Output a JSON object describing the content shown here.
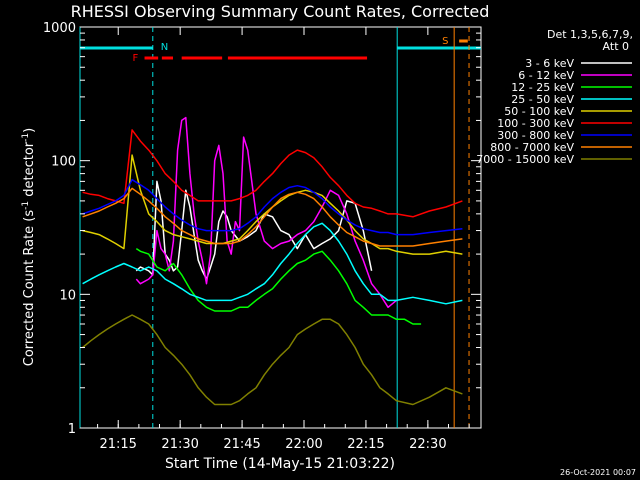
{
  "chart_data": {
    "type": "line",
    "title": "RHESSI Observing Summary Count Rates, Corrected",
    "xlabel": "Start Time (14-May-15 21:03:22)",
    "ylabel_main": "Corrected Count Rate (s",
    "ylabel_sup1": "-1",
    "ylabel_mid": " detector",
    "ylabel_sup2": "-1",
    "ylabel_end": ")",
    "yscale": "log",
    "ylim": [
      1,
      1000
    ],
    "xlim_min": [
      3.37,
      100.5
    ],
    "x_ticks_min": [
      12.63,
      27.63,
      42.63,
      57.63,
      72.63,
      87.63
    ],
    "x_tick_labels": [
      "21:15",
      "21:30",
      "21:45",
      "22:00",
      "22:15",
      "22:30"
    ],
    "y_ticks": [
      1,
      10,
      100,
      1000
    ],
    "y_tick_labels": [
      "1",
      "10",
      "100",
      "1000"
    ],
    "legend_header": [
      "Det 1,3,5,6,7,9,",
      "Att 0"
    ],
    "timestamp": "26-Oct-2021 00:07",
    "flags": {
      "N_label": "N",
      "S_label": "S",
      "F_label": "F",
      "night_color": "#00e0e0",
      "saa_color": "#ff8000",
      "flare_color": "#ff0000",
      "night_lines_min": [
        3.37,
        21.0,
        80.2
      ],
      "night_top_segments_min": [
        [
          3.37,
          21.0
        ],
        [
          80.2,
          100.5
        ]
      ],
      "saa_line_min": 94.0,
      "saa_dashed_min": 97.6,
      "saa_segment_min": [
        95.2,
        97.3
      ],
      "flare_segments_min": [
        [
          19.0,
          22.3
        ],
        [
          23.2,
          25.9
        ],
        [
          28.0,
          37.8
        ],
        [
          39.2,
          72.9
        ]
      ]
    },
    "series": [
      {
        "name": "3 - 6 keV",
        "color": "#ffffff",
        "x": [
          17,
          18,
          20,
          21,
          22,
          23,
          24,
          25,
          26,
          27,
          28,
          29,
          30,
          31,
          32,
          33,
          34,
          35,
          36,
          37,
          38,
          39,
          40,
          42,
          44,
          46,
          48,
          50,
          52,
          54,
          56,
          58,
          60,
          62,
          64,
          66,
          68,
          70,
          72,
          74
        ],
        "y": [
          15,
          16,
          15,
          14,
          70,
          50,
          20,
          18,
          15,
          16,
          30,
          60,
          45,
          28,
          18,
          15,
          13,
          16,
          20,
          35,
          42,
          38,
          30,
          25,
          27,
          30,
          40,
          38,
          30,
          28,
          22,
          28,
          22,
          24,
          26,
          30,
          50,
          48,
          30,
          15
        ]
      },
      {
        "name": "6 - 12 keV",
        "color": "#ff00ff",
        "x": [
          17,
          18,
          20,
          21,
          22,
          23,
          24,
          25,
          26,
          27,
          28,
          29,
          30,
          31,
          32,
          33,
          34,
          35,
          36,
          37,
          38,
          39,
          40,
          41,
          42,
          43,
          44,
          46,
          48,
          50,
          52,
          54,
          56,
          58,
          60,
          62,
          64,
          66,
          68,
          70,
          72,
          74,
          76,
          78,
          80
        ],
        "y": [
          13,
          12,
          13,
          14,
          30,
          22,
          20,
          15,
          25,
          120,
          200,
          210,
          80,
          40,
          25,
          18,
          12,
          20,
          100,
          130,
          80,
          25,
          20,
          35,
          30,
          150,
          120,
          40,
          25,
          22,
          24,
          25,
          28,
          30,
          35,
          45,
          60,
          55,
          40,
          25,
          18,
          12,
          10,
          8,
          9
        ]
      },
      {
        "name": "12 - 25 keV",
        "color": "#00ff00",
        "x": [
          17,
          18,
          20,
          22,
          24,
          26,
          28,
          30,
          32,
          34,
          36,
          38,
          40,
          42,
          44,
          46,
          48,
          50,
          52,
          54,
          56,
          58,
          60,
          62,
          64,
          66,
          68,
          70,
          72,
          74,
          76,
          78,
          80,
          82,
          84,
          86
        ],
        "y": [
          22,
          21,
          20,
          16,
          15,
          17,
          14,
          11,
          9,
          8,
          7.5,
          7.5,
          7.5,
          8,
          8,
          9,
          10,
          11,
          13,
          15,
          17,
          18,
          20,
          21,
          18,
          15,
          12,
          9,
          8,
          7,
          7,
          7,
          6.5,
          6.5,
          6,
          6
        ]
      },
      {
        "name": "25 - 50 keV",
        "color": "#00ffff",
        "x": [
          4,
          6,
          8,
          10,
          12,
          14,
          16,
          18,
          20,
          22,
          24,
          26,
          28,
          30,
          32,
          34,
          36,
          38,
          40,
          42,
          44,
          46,
          48,
          50,
          52,
          54,
          56,
          58,
          60,
          62,
          64,
          66,
          68,
          70,
          72,
          74,
          76,
          78,
          80,
          84,
          88,
          92,
          96
        ],
        "y": [
          12,
          13,
          14,
          15,
          16,
          17,
          16,
          15,
          16,
          15,
          13,
          12,
          11,
          10,
          9.5,
          9,
          9,
          9,
          9,
          9.5,
          10,
          11,
          12,
          14,
          17,
          20,
          24,
          28,
          32,
          34,
          30,
          25,
          20,
          15,
          12,
          10,
          10,
          9,
          9,
          9.5,
          9,
          8.5,
          9
        ]
      },
      {
        "name": "50 - 100 keV",
        "color": "#e0d000",
        "x": [
          4,
          6,
          8,
          10,
          12,
          14,
          16,
          18,
          20,
          22,
          24,
          26,
          28,
          30,
          32,
          34,
          36,
          38,
          40,
          42,
          44,
          46,
          48,
          50,
          52,
          54,
          56,
          58,
          60,
          62,
          64,
          66,
          68,
          70,
          72,
          74,
          76,
          78,
          80,
          84,
          88,
          92,
          96
        ],
        "y": [
          30,
          29,
          28,
          26,
          24,
          22,
          110,
          60,
          40,
          35,
          30,
          28,
          27,
          26,
          25,
          24,
          24,
          24,
          25,
          26,
          30,
          35,
          40,
          45,
          50,
          55,
          58,
          60,
          58,
          55,
          48,
          42,
          36,
          30,
          26,
          24,
          22,
          22,
          21,
          20,
          20,
          21,
          20
        ]
      },
      {
        "name": "100 - 300 keV",
        "color": "#ff0000",
        "x": [
          4,
          6,
          8,
          10,
          12,
          14,
          16,
          18,
          20,
          22,
          24,
          26,
          28,
          30,
          32,
          34,
          36,
          38,
          40,
          42,
          44,
          46,
          48,
          50,
          52,
          54,
          56,
          58,
          60,
          62,
          64,
          66,
          68,
          70,
          72,
          74,
          76,
          78,
          80,
          84,
          88,
          92,
          96
        ],
        "y": [
          58,
          56,
          55,
          52,
          50,
          48,
          170,
          140,
          120,
          100,
          80,
          70,
          60,
          55,
          50,
          50,
          50,
          50,
          50,
          52,
          55,
          60,
          70,
          80,
          95,
          110,
          120,
          115,
          105,
          90,
          75,
          65,
          55,
          48,
          45,
          44,
          42,
          40,
          40,
          38,
          42,
          45,
          50
        ]
      },
      {
        "name": "300 - 800 keV",
        "color": "#0000ff",
        "x": [
          4,
          6,
          8,
          10,
          12,
          14,
          16,
          18,
          20,
          22,
          24,
          26,
          28,
          30,
          32,
          34,
          36,
          38,
          40,
          42,
          44,
          46,
          48,
          50,
          52,
          54,
          56,
          58,
          60,
          62,
          64,
          66,
          68,
          70,
          72,
          74,
          76,
          78,
          80,
          84,
          88,
          92,
          96
        ],
        "y": [
          40,
          42,
          44,
          47,
          50,
          55,
          72,
          66,
          60,
          52,
          45,
          40,
          36,
          33,
          31,
          30,
          30,
          30,
          30,
          31,
          34,
          38,
          45,
          52,
          58,
          63,
          65,
          63,
          58,
          52,
          45,
          40,
          36,
          33,
          31,
          30,
          29,
          29,
          28,
          28,
          29,
          30,
          31
        ]
      },
      {
        "name": "800 - 7000 keV",
        "color": "#ff8000",
        "x": [
          4,
          6,
          8,
          10,
          12,
          14,
          16,
          18,
          20,
          22,
          24,
          26,
          28,
          30,
          32,
          34,
          36,
          38,
          40,
          42,
          44,
          46,
          48,
          50,
          52,
          54,
          56,
          58,
          60,
          62,
          64,
          66,
          68,
          70,
          72,
          74,
          76,
          78,
          80,
          84,
          88,
          92,
          96
        ],
        "y": [
          38,
          40,
          42,
          45,
          48,
          52,
          62,
          56,
          50,
          44,
          38,
          34,
          30,
          28,
          26,
          25,
          24,
          24,
          24,
          25,
          28,
          32,
          38,
          45,
          52,
          56,
          58,
          56,
          52,
          45,
          38,
          33,
          29,
          27,
          25,
          24,
          23,
          23,
          23,
          23,
          24,
          25,
          26
        ]
      },
      {
        "name": "7000 - 15000 keV",
        "color": "#808000",
        "x": [
          4,
          6,
          8,
          10,
          12,
          14,
          16,
          18,
          20,
          22,
          24,
          26,
          28,
          30,
          32,
          34,
          36,
          38,
          40,
          42,
          44,
          46,
          48,
          50,
          52,
          54,
          56,
          58,
          60,
          62,
          64,
          66,
          68,
          70,
          72,
          74,
          76,
          78,
          80,
          84,
          88,
          92,
          96
        ],
        "y": [
          4,
          4.5,
          5,
          5.5,
          6,
          6.5,
          7,
          6.5,
          6,
          5,
          4,
          3.5,
          3,
          2.5,
          2,
          1.7,
          1.5,
          1.5,
          1.5,
          1.6,
          1.8,
          2,
          2.5,
          3,
          3.5,
          4,
          5,
          5.5,
          6,
          6.5,
          6.5,
          6,
          5,
          4,
          3,
          2.5,
          2,
          1.8,
          1.6,
          1.5,
          1.7,
          2,
          1.8
        ]
      }
    ]
  }
}
